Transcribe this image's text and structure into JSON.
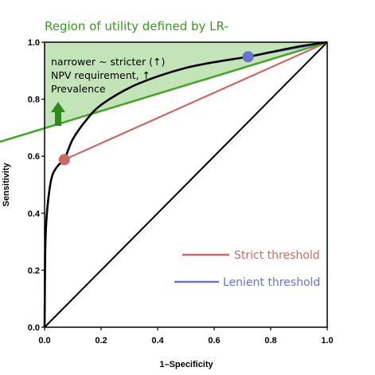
{
  "chart_data": {
    "type": "line",
    "title": "Region of utility defined by LR-",
    "xlabel": "1–Specificity",
    "ylabel": "Sensitivity",
    "xlim": [
      0,
      1
    ],
    "ylim": [
      0,
      1
    ],
    "x_ticks": [
      "0.0",
      "0.2",
      "0.4",
      "0.6",
      "0.8",
      "1.0"
    ],
    "y_ticks": [
      "0.0",
      "0.2",
      "0.4",
      "0.6",
      "0.8",
      "1.0"
    ],
    "grid": false,
    "annotation_lines": [
      "narrower ~ stricter (↑)",
      "NPV requirement, ↑",
      "Prevalence"
    ],
    "colors": {
      "roc_curve": "#000000",
      "diagonal": "#000000",
      "region_line": "#44a524",
      "region_fill": "#b9deab",
      "strict": "#cc6a6a",
      "lenient": "#6a73cc",
      "arrow": "#2f8a1a"
    },
    "series": [
      {
        "type": "curve",
        "x": [
          0.0,
          0.002,
          0.005,
          0.01,
          0.02,
          0.03,
          0.05,
          0.07,
          0.1,
          0.15,
          0.2,
          0.3,
          0.4,
          0.5,
          0.6,
          0.72,
          0.8,
          0.9,
          1.0
        ],
        "y": [
          0.0,
          0.25,
          0.35,
          0.42,
          0.5,
          0.54,
          0.57,
          0.588,
          0.66,
          0.73,
          0.78,
          0.84,
          0.88,
          0.91,
          0.93,
          0.949,
          0.965,
          0.985,
          1.0
        ]
      },
      {
        "type": "diagonal",
        "x": [
          0,
          1
        ],
        "y": [
          0,
          1
        ]
      },
      {
        "type": "region-line",
        "x": [
          -0.16,
          1.0
        ],
        "y": [
          0.65,
          1.0
        ]
      },
      {
        "type": "strict-line",
        "x": [
          0.07,
          1.0
        ],
        "y": [
          0.588,
          1.0
        ]
      },
      {
        "type": "lenient-line",
        "x": [
          0.72,
          1.0
        ],
        "y": [
          0.949,
          1.0
        ]
      }
    ],
    "points": [
      {
        "label": "strict",
        "x": 0.07,
        "y": 0.588
      },
      {
        "label": "lenient",
        "x": 0.72,
        "y": 0.949
      }
    ],
    "legend": [
      {
        "label": "Strict threshold",
        "color": "#cc6a6a"
      },
      {
        "label": "Lenient threshold",
        "color": "#6a73cc"
      }
    ],
    "legend_position": "bottom-right"
  }
}
